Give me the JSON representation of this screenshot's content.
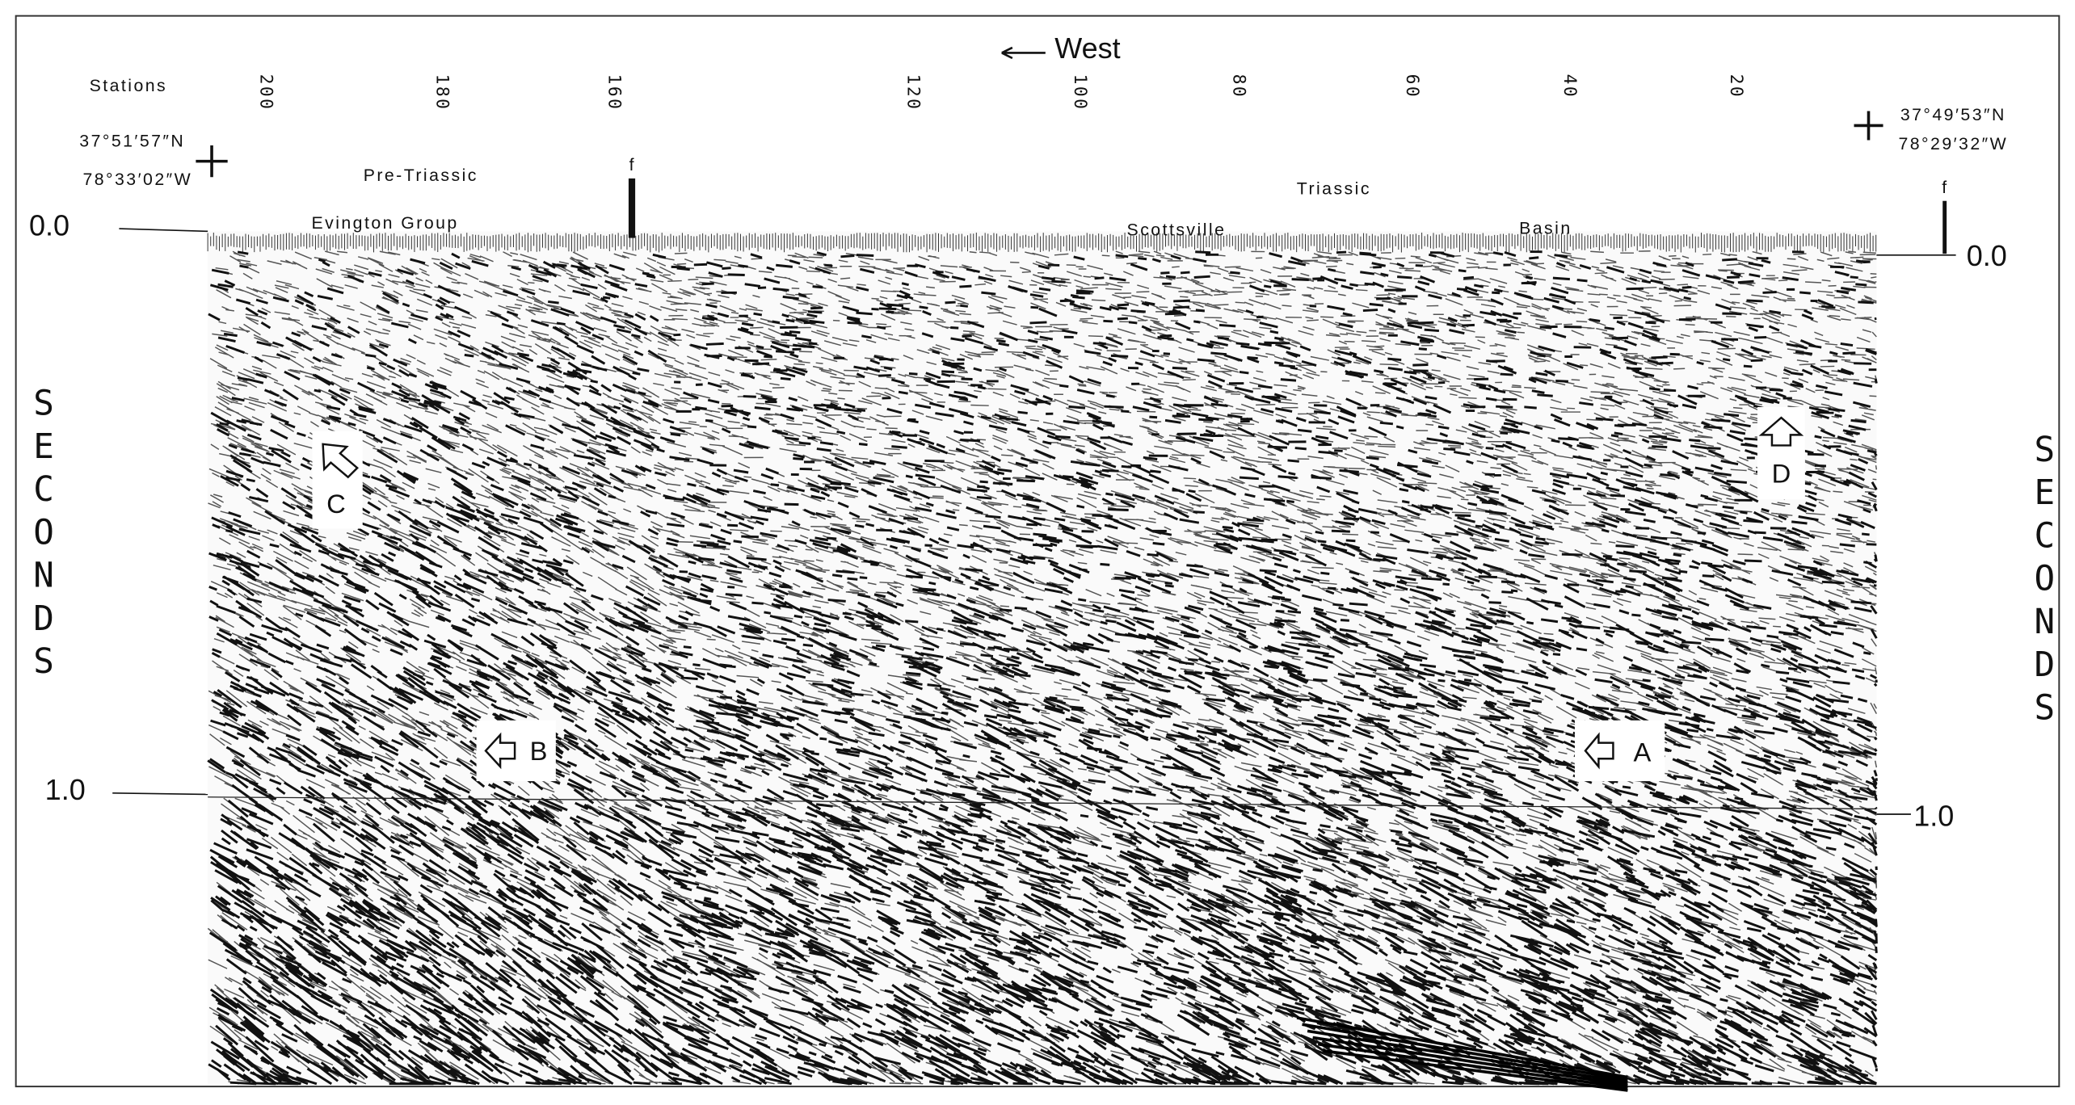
{
  "header": {
    "title": "West",
    "stations_label": "Stations"
  },
  "stations": [
    "200",
    "180",
    "160",
    "120",
    "100",
    "80",
    "60",
    "40",
    "20"
  ],
  "coordinates": {
    "west_lat": "37°51′57″N",
    "west_lon": "78°33′02″W",
    "east_lat": "37°49′53″N",
    "east_lon": "78°29′32″W"
  },
  "units": {
    "pre_triassic": "Pre-Triassic",
    "evington": "Evington Group",
    "triassic": "Triassic",
    "scottsville": "Scottsville",
    "basin": "Basin"
  },
  "faults": [
    "f",
    "f"
  ],
  "time_axis": {
    "left": [
      "0.0",
      "1.0"
    ],
    "right": [
      "0.0",
      "1.0"
    ],
    "label_left": "SECONDS",
    "label_right": "SECONDS"
  },
  "markers": [
    "A",
    "B",
    "C",
    "D"
  ]
}
